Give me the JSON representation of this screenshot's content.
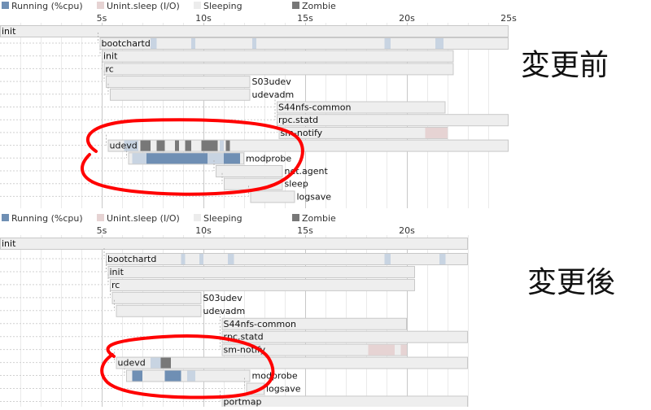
{
  "legend": [
    {
      "label": "Running (%cpu)",
      "color": "#6f8fb4"
    },
    {
      "label": "Unint.sleep (I/O)",
      "color": "#e6d3d3"
    },
    {
      "label": "Sleeping",
      "color": "#ececec"
    },
    {
      "label": "Zombie",
      "color": "#787878"
    }
  ],
  "colors": {
    "bar_fill": "#eeeeee",
    "bar_stroke": "#c8c8c8",
    "running_dark": "#6f8fb4",
    "running_light": "#c8d4e2",
    "io": "#e6d3d3",
    "zombie": "#787878",
    "annotation": "#ff0000",
    "grid": "#d8d8d8"
  },
  "chart_data": [
    {
      "type": "gantt",
      "title": "変更前",
      "x_unit": "s",
      "ticks": [
        5,
        10,
        15,
        20,
        25
      ],
      "tick_labels": [
        "5s",
        "10s",
        "15s",
        "20s",
        "25s"
      ],
      "processes": [
        {
          "name": "init",
          "start": 0.0,
          "end": 25.0,
          "label_pos": "inside"
        },
        {
          "name": "bootchartd",
          "start": 4.9,
          "end": 25.0,
          "label_pos": "inside",
          "segments": [
            {
              "kind": "running_light",
              "start": 7.4,
              "end": 7.7
            },
            {
              "kind": "running_light",
              "start": 9.4,
              "end": 9.6
            },
            {
              "kind": "running_light",
              "start": 12.4,
              "end": 12.6
            },
            {
              "kind": "running_light",
              "start": 18.9,
              "end": 19.2
            },
            {
              "kind": "running_light",
              "start": 21.4,
              "end": 21.8
            }
          ]
        },
        {
          "name": "init",
          "start": 5.0,
          "end": 22.3,
          "label_pos": "inside"
        },
        {
          "name": "rc",
          "start": 5.1,
          "end": 22.3,
          "label_pos": "inside"
        },
        {
          "name": "S03udev",
          "start": 5.2,
          "end": 12.3,
          "label_pos": "after"
        },
        {
          "name": "udevadm",
          "start": 5.4,
          "end": 12.3,
          "label_pos": "after"
        },
        {
          "name": "S44nfs-common",
          "start": 13.6,
          "end": 21.9,
          "label_pos": "inside"
        },
        {
          "name": "rpc.statd",
          "start": 13.6,
          "end": 25.0,
          "label_pos": "inside"
        },
        {
          "name": "sm-notify",
          "start": 13.7,
          "end": 22.0,
          "label_pos": "inside",
          "segments": [
            {
              "kind": "io",
              "start": 20.9,
              "end": 22.0
            }
          ]
        },
        {
          "name": "udevd",
          "start": 5.3,
          "end": 25.0,
          "label_pos": "inside",
          "segments": [
            {
              "kind": "zombie",
              "start": 6.9,
              "end": 7.4
            },
            {
              "kind": "zombie",
              "start": 7.7,
              "end": 8.1
            },
            {
              "kind": "zombie",
              "start": 8.6,
              "end": 8.8
            },
            {
              "kind": "zombie",
              "start": 9.1,
              "end": 9.4
            },
            {
              "kind": "zombie",
              "start": 9.9,
              "end": 10.7
            },
            {
              "kind": "zombie",
              "start": 11.1,
              "end": 11.3
            },
            {
              "kind": "running_light",
              "start": 6.1,
              "end": 6.8
            },
            {
              "kind": "running_light",
              "start": 10.8,
              "end": 11.0
            }
          ]
        },
        {
          "name": "modprobe",
          "start": 6.3,
          "end": 12.0,
          "label_pos": "after",
          "segments": [
            {
              "kind": "running_light",
              "start": 6.5,
              "end": 7.2
            },
            {
              "kind": "running_dark",
              "start": 7.2,
              "end": 10.2
            },
            {
              "kind": "running_light",
              "start": 10.2,
              "end": 11.0
            },
            {
              "kind": "running_dark",
              "start": 11.0,
              "end": 11.8
            }
          ]
        },
        {
          "name": "net.agent",
          "start": 10.6,
          "end": 13.9,
          "label_pos": "after"
        },
        {
          "name": "sleep",
          "start": 11.0,
          "end": 13.9,
          "label_pos": "after"
        },
        {
          "name": "logsave",
          "start": 12.3,
          "end": 14.5,
          "label_pos": "after"
        }
      ]
    },
    {
      "type": "gantt",
      "title": "変更後",
      "x_unit": "s",
      "ticks": [
        5,
        10,
        15,
        20
      ],
      "tick_labels": [
        "5s",
        "10s",
        "15s",
        "20s"
      ],
      "processes": [
        {
          "name": "init",
          "start": 0.0,
          "end": 23.0,
          "label_pos": "inside"
        },
        {
          "name": "bootchartd",
          "start": 5.2,
          "end": 23.0,
          "label_pos": "inside",
          "segments": [
            {
              "kind": "running_light",
              "start": 8.9,
              "end": 9.1
            },
            {
              "kind": "running_light",
              "start": 9.8,
              "end": 10.0
            },
            {
              "kind": "running_light",
              "start": 11.2,
              "end": 11.5
            },
            {
              "kind": "running_light",
              "start": 18.9,
              "end": 19.2
            },
            {
              "kind": "running_light",
              "start": 21.6,
              "end": 21.9
            }
          ]
        },
        {
          "name": "init",
          "start": 5.3,
          "end": 20.4,
          "label_pos": "inside"
        },
        {
          "name": "rc",
          "start": 5.4,
          "end": 20.4,
          "label_pos": "inside"
        },
        {
          "name": "S03udev",
          "start": 5.5,
          "end": 9.9,
          "label_pos": "after"
        },
        {
          "name": "udevadm",
          "start": 5.7,
          "end": 9.9,
          "label_pos": "after"
        },
        {
          "name": "S44nfs-common",
          "start": 10.9,
          "end": 20.0,
          "label_pos": "inside"
        },
        {
          "name": "rpc.statd",
          "start": 10.9,
          "end": 23.0,
          "label_pos": "inside"
        },
        {
          "name": "sm-notify",
          "start": 10.9,
          "end": 20.0,
          "label_pos": "inside",
          "segments": [
            {
              "kind": "io",
              "start": 18.1,
              "end": 19.4
            },
            {
              "kind": "io",
              "start": 19.7,
              "end": 20.0
            }
          ]
        },
        {
          "name": "udevd",
          "start": 5.7,
          "end": 23.0,
          "label_pos": "inside",
          "segments": [
            {
              "kind": "running_light",
              "start": 7.4,
              "end": 7.9
            },
            {
              "kind": "zombie",
              "start": 7.9,
              "end": 8.4
            }
          ]
        },
        {
          "name": "modprobe",
          "start": 6.2,
          "end": 12.3,
          "label_pos": "after",
          "segments": [
            {
              "kind": "running_dark",
              "start": 6.5,
              "end": 7.0
            },
            {
              "kind": "running_dark",
              "start": 8.1,
              "end": 8.9
            },
            {
              "kind": "running_light",
              "start": 9.2,
              "end": 9.6
            }
          ]
        },
        {
          "name": "logsave",
          "start": 12.1,
          "end": 13.0,
          "label_pos": "after"
        },
        {
          "name": "portmap",
          "start": 10.9,
          "end": 23.0,
          "label_pos": "inside"
        }
      ]
    }
  ]
}
